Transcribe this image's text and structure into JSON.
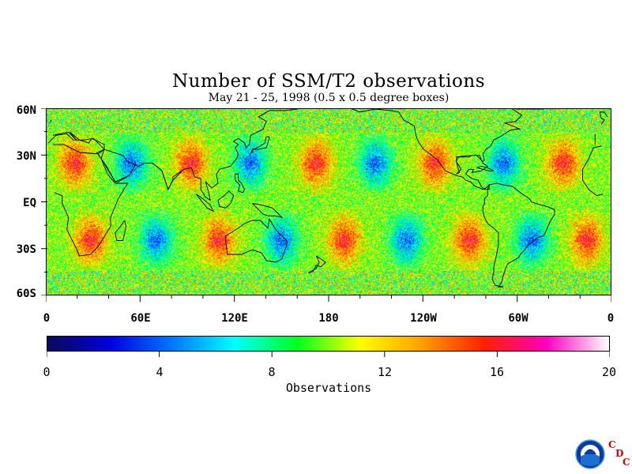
{
  "chart_data": {
    "type": "heatmap",
    "title": "Number of SSM/T2 observations",
    "subtitle": "May 21 - 25, 1998 (0.5 x 0.5 degree boxes)",
    "x_tick_labels": [
      "0",
      "60E",
      "120E",
      "180",
      "120W",
      "60W",
      "0"
    ],
    "y_tick_labels": [
      "60N",
      "30N",
      "EQ",
      "30S",
      "60S"
    ],
    "xlim": [
      0,
      360
    ],
    "ylim": [
      -60,
      60
    ],
    "colorbar": {
      "label": "Observations",
      "range": [
        0,
        20
      ],
      "tick_labels": [
        "0",
        "4",
        "8",
        "12",
        "16",
        "20"
      ],
      "colors": [
        "#0a0a5a",
        "#0000e0",
        "#0078ff",
        "#00ffff",
        "#00ff20",
        "#ffff00",
        "#ffa000",
        "#ff2000",
        "#ff00c0",
        "#ffffff"
      ]
    },
    "pattern": {
      "north_band_centers_lon": [
        18,
        54,
        92,
        130,
        172,
        210,
        248,
        292,
        330
      ],
      "south_band_centers_lon": [
        28,
        70,
        110,
        150,
        190,
        230,
        270,
        310,
        345
      ],
      "typical_min": 4,
      "typical_max": 16
    },
    "coastlines": "continental outlines"
  },
  "logo": {
    "emblem_text": "NOAA",
    "org_letters": [
      "C",
      "D",
      "C"
    ]
  }
}
